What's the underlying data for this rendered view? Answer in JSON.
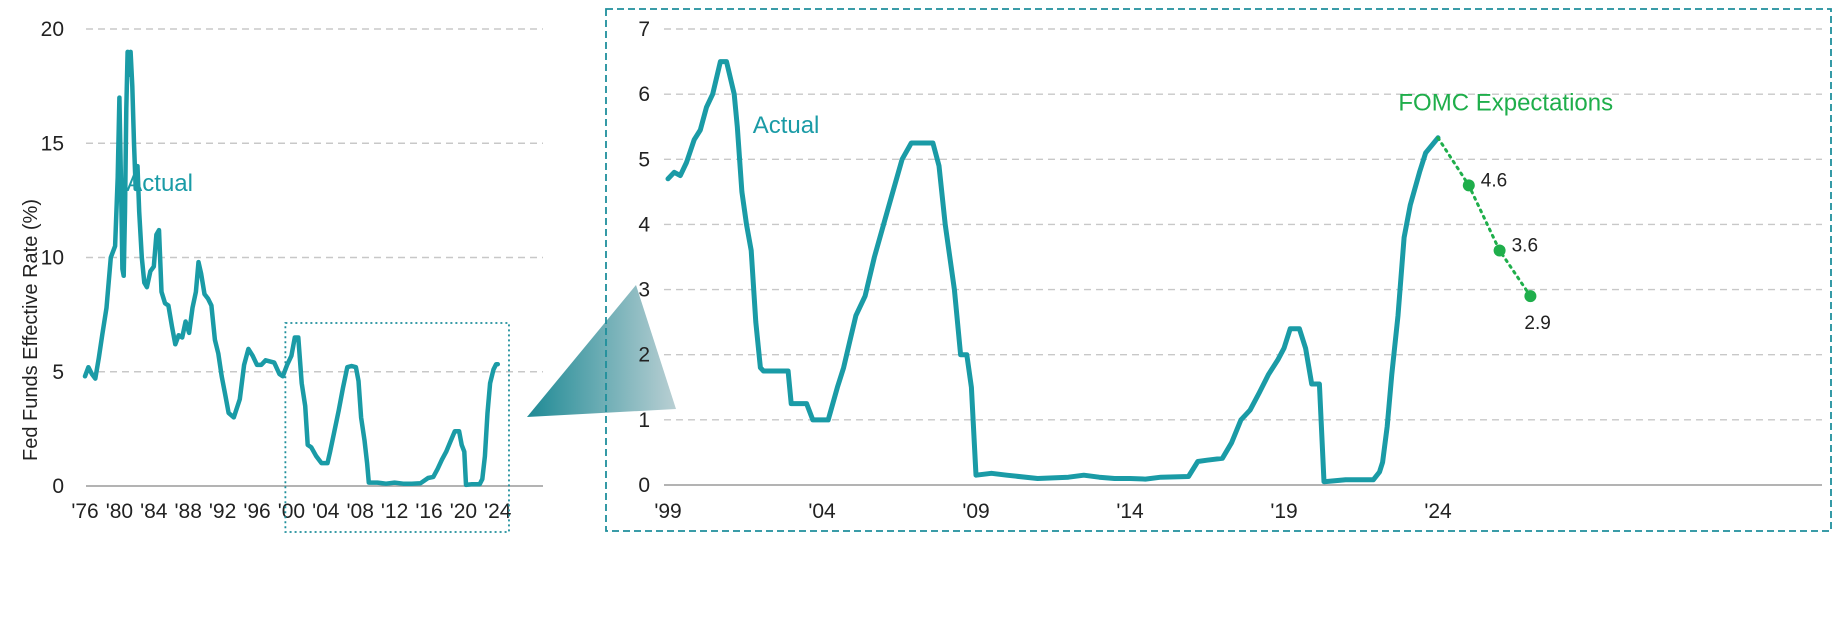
{
  "colors": {
    "actual": "#1a9ba6",
    "fomc": "#1fae4b",
    "frame": "#1f8f9c",
    "connector_dark": "#1e8a95",
    "connector_light": "#b9cfd3"
  },
  "chart_data": [
    {
      "type": "line",
      "ylabel": "Fed Funds Effective Rate (%)",
      "ylim": [
        0,
        20
      ],
      "yticks": [
        "0",
        "5",
        "10",
        "15",
        "20"
      ],
      "xlim": [
        1976,
        2025
      ],
      "xticks": [
        "'76",
        "'80",
        "'84",
        "'88",
        "'92",
        "'96",
        "'00",
        "'04",
        "'08",
        "'12",
        "'16",
        "'20",
        "'24"
      ],
      "grid": true,
      "series": [
        {
          "name": "Actual",
          "x": [
            1976,
            1976.4,
            1976.8,
            1977.2,
            1977.6,
            1978,
            1978.5,
            1979,
            1979.5,
            1979.8,
            1980.0,
            1980.2,
            1980.35,
            1980.5,
            1980.65,
            1980.8,
            1980.95,
            1981.1,
            1981.3,
            1981.5,
            1981.7,
            1981.9,
            1982.1,
            1982.3,
            1982.6,
            1982.9,
            1983.2,
            1983.6,
            1984.0,
            1984.3,
            1984.6,
            1984.9,
            1985.3,
            1985.7,
            1986.1,
            1986.5,
            1986.9,
            1987.3,
            1987.7,
            1988.1,
            1988.5,
            1988.9,
            1989.2,
            1989.5,
            1989.9,
            1990.3,
            1990.7,
            1991.1,
            1991.5,
            1991.9,
            1992.3,
            1992.7,
            1993.3,
            1994.0,
            1994.5,
            1995.0,
            1995.5,
            1996.0,
            1996.5,
            1997.0,
            1998.0,
            1998.6,
            1999.0,
            1999.5,
            2000.0,
            2000.4,
            2000.8,
            2001.2,
            2001.6,
            2001.9,
            2002.3,
            2002.9,
            2003.5,
            2004.2,
            2004.5,
            2005.0,
            2005.5,
            2006.0,
            2006.5,
            2007.0,
            2007.5,
            2007.8,
            2008.1,
            2008.5,
            2008.8,
            2009.0,
            2010.0,
            2011.0,
            2012.0,
            2013.0,
            2014.0,
            2015.0,
            2015.9,
            2016.5,
            2017.0,
            2017.5,
            2018.0,
            2018.5,
            2019.0,
            2019.5,
            2019.8,
            2020.1,
            2020.3,
            2021.0,
            2021.9,
            2022.2,
            2022.5,
            2022.8,
            2023.1,
            2023.5,
            2023.8,
            2024.0
          ],
          "values": [
            4.8,
            5.2,
            4.9,
            4.7,
            5.6,
            6.6,
            7.8,
            10.0,
            10.5,
            13.5,
            17.0,
            13.0,
            9.5,
            9.2,
            12.0,
            16.5,
            19.0,
            18.0,
            19.0,
            17.5,
            15.0,
            13.0,
            14.0,
            12.0,
            10.0,
            8.9,
            8.7,
            9.4,
            9.6,
            11.0,
            11.2,
            8.5,
            8.0,
            7.9,
            7.0,
            6.2,
            6.6,
            6.5,
            7.2,
            6.7,
            7.8,
            8.5,
            9.8,
            9.3,
            8.4,
            8.2,
            7.9,
            6.4,
            5.8,
            4.8,
            4.0,
            3.2,
            3.0,
            3.8,
            5.3,
            6.0,
            5.7,
            5.3,
            5.3,
            5.5,
            5.4,
            4.9,
            4.8,
            5.3,
            5.7,
            6.5,
            6.5,
            4.5,
            3.5,
            1.8,
            1.7,
            1.3,
            1.0,
            1.0,
            1.5,
            2.4,
            3.3,
            4.3,
            5.2,
            5.25,
            5.2,
            4.6,
            3.0,
            2.0,
            1.0,
            0.15,
            0.15,
            0.1,
            0.15,
            0.1,
            0.1,
            0.12,
            0.35,
            0.4,
            0.75,
            1.15,
            1.5,
            1.95,
            2.4,
            2.4,
            1.8,
            1.5,
            0.05,
            0.08,
            0.08,
            0.3,
            1.3,
            3.2,
            4.5,
            5.1,
            5.33,
            5.33
          ]
        }
      ],
      "annotations": [
        {
          "text": "Actual",
          "x": 1980.8,
          "y": 12.9
        }
      ]
    },
    {
      "type": "line",
      "ylim": [
        0,
        7
      ],
      "yticks": [
        "0",
        "1",
        "2",
        "3",
        "4",
        "5",
        "6",
        "7"
      ],
      "xlim": [
        1999,
        2027.2
      ],
      "xticks": [
        "'99",
        "'04",
        "'09",
        "'14",
        "'19",
        "'24"
      ],
      "grid": true,
      "series": [
        {
          "name": "Actual",
          "x": [
            1999.0,
            1999.2,
            1999.4,
            1999.6,
            1999.85,
            2000.05,
            2000.25,
            2000.45,
            2000.7,
            2000.9,
            2001.15,
            2001.25,
            2001.4,
            2001.55,
            2001.7,
            2001.85,
            2002.0,
            2002.1,
            2002.3,
            2002.9,
            2003.0,
            2003.2,
            2003.5,
            2003.7,
            2004.0,
            2004.2,
            2004.5,
            2004.7,
            2004.9,
            2005.1,
            2005.4,
            2005.7,
            2006.0,
            2006.3,
            2006.6,
            2006.9,
            2007.3,
            2007.6,
            2007.8,
            2008.0,
            2008.3,
            2008.5,
            2008.7,
            2008.85,
            2009.0,
            2009.5,
            2010.0,
            2011.0,
            2012.0,
            2012.5,
            2013.0,
            2013.5,
            2014.0,
            2014.5,
            2015.0,
            2015.9,
            2016.2,
            2016.5,
            2017.0,
            2017.3,
            2017.6,
            2017.9,
            2018.2,
            2018.5,
            2018.8,
            2019.0,
            2019.2,
            2019.5,
            2019.7,
            2019.9,
            2020.15,
            2020.3,
            2021.0,
            2021.9,
            2022.1,
            2022.2,
            2022.35,
            2022.5,
            2022.7,
            2022.9,
            2023.1,
            2023.4,
            2023.6,
            2024.0
          ],
          "values": [
            4.7,
            4.8,
            4.75,
            4.95,
            5.3,
            5.45,
            5.8,
            6.0,
            6.5,
            6.5,
            6.0,
            5.5,
            4.5,
            4.0,
            3.6,
            2.5,
            1.8,
            1.75,
            1.75,
            1.75,
            1.25,
            1.25,
            1.25,
            1.0,
            1.0,
            1.0,
            1.5,
            1.8,
            2.2,
            2.6,
            2.9,
            3.5,
            4.0,
            4.5,
            5.0,
            5.25,
            5.25,
            5.25,
            4.9,
            4.0,
            3.0,
            2.0,
            2.0,
            1.5,
            0.15,
            0.18,
            0.15,
            0.1,
            0.12,
            0.15,
            0.12,
            0.1,
            0.1,
            0.09,
            0.12,
            0.13,
            0.36,
            0.38,
            0.41,
            0.65,
            1.0,
            1.15,
            1.42,
            1.7,
            1.92,
            2.1,
            2.4,
            2.4,
            2.1,
            1.55,
            1.55,
            0.05,
            0.08,
            0.08,
            0.2,
            0.35,
            0.9,
            1.7,
            2.6,
            3.8,
            4.3,
            4.8,
            5.1,
            5.33
          ]
        },
        {
          "name": "FOMC Expectations",
          "style": "dotted",
          "x": [
            2024.0,
            2025.0,
            2026.0,
            2027.0
          ],
          "values": [
            5.33,
            4.6,
            3.6,
            2.9
          ],
          "point_labels": [
            "",
            "4.6",
            "3.6",
            "2.9"
          ]
        }
      ],
      "annotations": [
        {
          "text": "Actual",
          "x": 2001.75,
          "y": 5.4
        },
        {
          "text": "FOMC Expectations",
          "x": 2026.2,
          "y": 5.75
        }
      ]
    }
  ]
}
